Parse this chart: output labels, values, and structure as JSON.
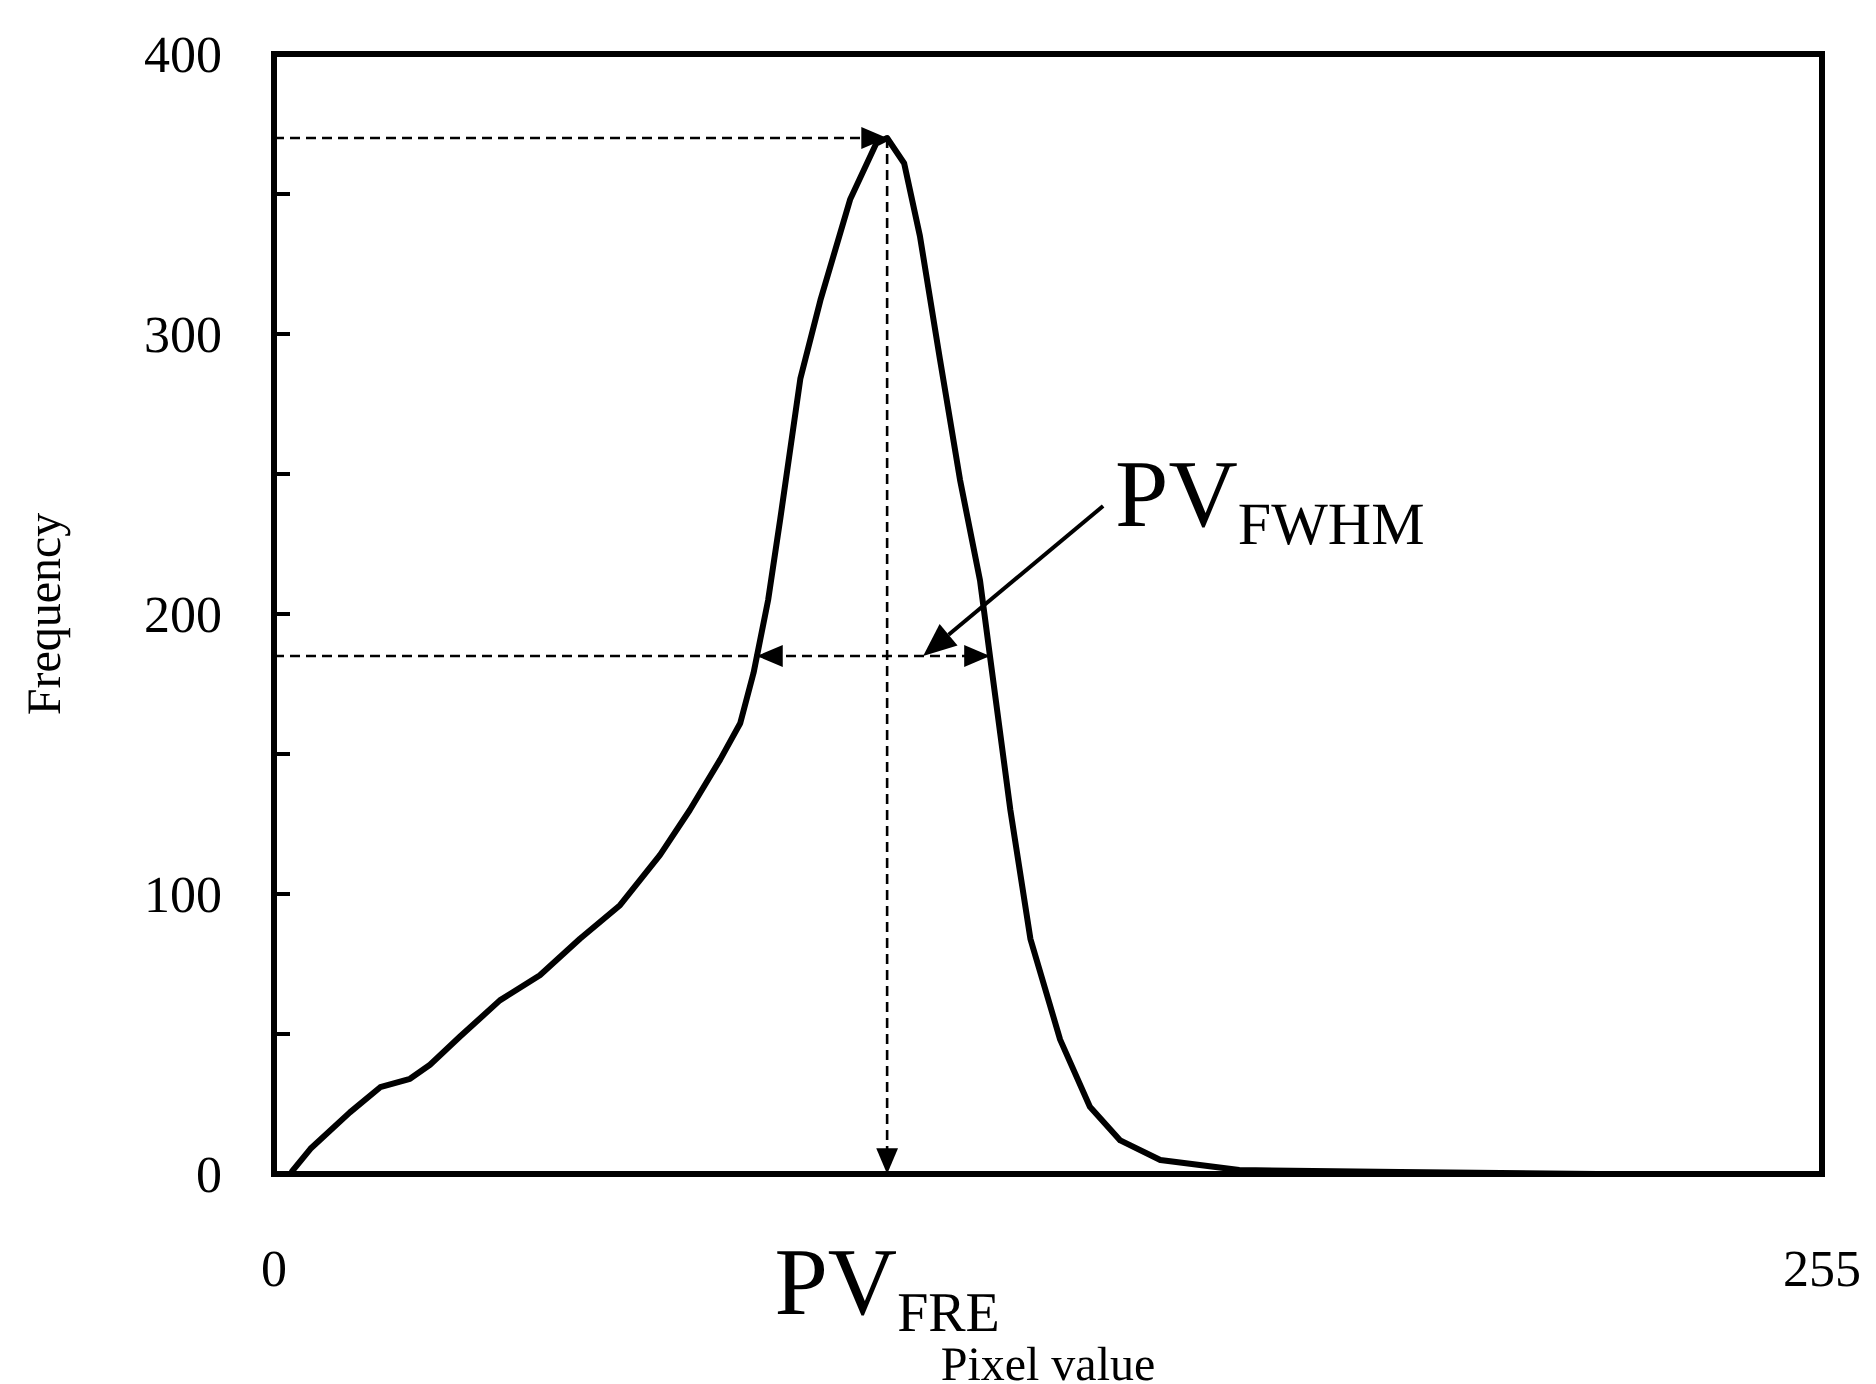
{
  "chart_data": {
    "type": "line",
    "xlabel": "Pixel value",
    "ylabel": "Frequency",
    "xlim": [
      0,
      255
    ],
    "ylim": [
      0,
      400
    ],
    "xticks": [
      0,
      255
    ],
    "yticks": [
      0,
      {
        "value": 50,
        "label": null
      },
      100,
      {
        "value": 150,
        "label": null
      },
      200,
      {
        "value": 250,
        "label": null
      },
      300,
      {
        "value": 350,
        "label": null
      },
      400
    ],
    "grid": false,
    "marker": "none",
    "line_style": "solid",
    "annotations": [
      {
        "text": "PV$_{FRE}$",
        "x": 101,
        "y": 370
      },
      "PV$_{FWHM}$"
    ],
    "series": [
      {
        "color": "#000000",
        "x": [
          3,
          6,
          12.5,
          17.5,
          22.4,
          25.7,
          30.6,
          37.2,
          43.8,
          50.4,
          57,
          63.6,
          68.5,
          73.5,
          76.8,
          79,
          81.4,
          83.4,
          86.7,
          90,
          94.9,
          99.2,
          101,
          103.8,
          106.4,
          109.7,
          113,
          116.3,
          118,
          121.3,
          124.6,
          129.5,
          134.4,
          139.4,
          146,
          159,
          185.5,
          218,
          253
        ],
        "values": [
          1,
          9,
          22,
          31,
          34,
          39,
          49,
          62,
          71,
          84,
          96,
          114,
          130,
          148,
          161,
          179,
          205,
          234,
          284,
          312,
          348,
          368,
          370,
          361,
          335,
          291,
          248,
          212,
          184,
          130,
          84,
          48,
          24,
          12,
          5,
          1.4,
          0.7,
          0,
          0
        ]
      }
    ]
  }
}
